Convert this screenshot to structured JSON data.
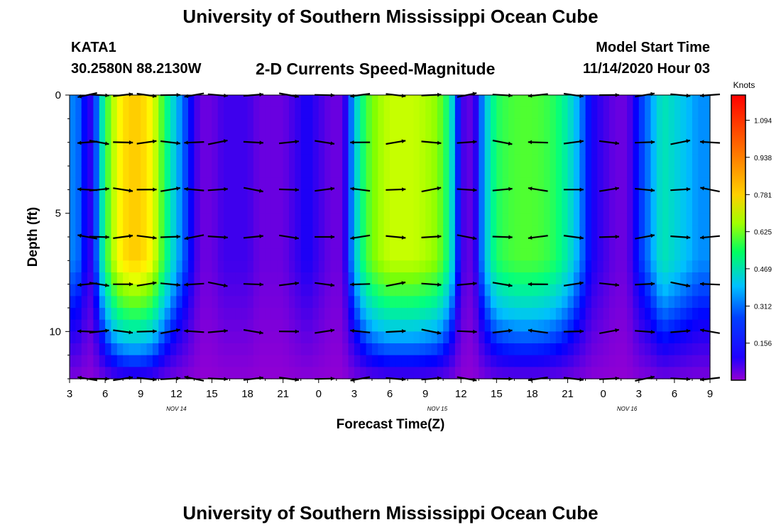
{
  "header": {
    "title": "University of Southern Mississippi Ocean Cube",
    "station": "KATA1",
    "coords": "30.2580N 88.2130W",
    "subtitle": "2-D Currents Speed-Magnitude",
    "model_start_label": "Model Start Time",
    "model_start_value": "11/14/2020 Hour 03",
    "bottom_title": "University of Southern Mississippi Ocean Cube"
  },
  "chart_data": {
    "type": "heatmap",
    "title": "2-D Currents Speed-Magnitude",
    "xlabel": "Forecast Time(Z)",
    "ylabel": "Depth (ft)",
    "x_ticks": [
      "3",
      "6",
      "9",
      "12",
      "15",
      "18",
      "21",
      "0",
      "3",
      "6",
      "9",
      "12",
      "15",
      "18",
      "21",
      "0",
      "3",
      "6",
      "9"
    ],
    "date_labels": [
      {
        "text": "NOV 14",
        "hour_offset": 9
      },
      {
        "text": "NOV 15",
        "hour_offset": 31
      },
      {
        "text": "NOV 16",
        "hour_offset": 47
      }
    ],
    "x_range_hours": [
      0,
      54
    ],
    "y_ticks": [
      0,
      5,
      10
    ],
    "ylim": [
      0,
      12
    ],
    "colorbar": {
      "label": "Knots",
      "range": [
        0,
        1.2
      ],
      "ticks": [
        "1.094",
        "0.938",
        "0.781",
        "0.625",
        "0.469",
        "0.312",
        "0.156"
      ],
      "colors": [
        "#9400d3",
        "#0000ff",
        "#00bfff",
        "#00ff80",
        "#80ff00",
        "#ffff00",
        "#ffa500",
        "#ff0000"
      ]
    },
    "speed_profile_hours": [
      0,
      1,
      1.5,
      2,
      3,
      4,
      5,
      6,
      7,
      8,
      9,
      10,
      11,
      12,
      13,
      14,
      15,
      16,
      17,
      18,
      19,
      20,
      21,
      22,
      23,
      24,
      25,
      26,
      27,
      28,
      29,
      30,
      31,
      32,
      33,
      34,
      35,
      36,
      37,
      38,
      39,
      40,
      41,
      42,
      43,
      44,
      45,
      46,
      47,
      48,
      49,
      50,
      51,
      52,
      53,
      54
    ],
    "speed_profile_knots": [
      0.3,
      0.25,
      0.1,
      0.15,
      0.55,
      0.85,
      0.95,
      0.95,
      0.85,
      0.55,
      0.35,
      0.2,
      0.05,
      0.05,
      0.1,
      0.1,
      0.1,
      0.05,
      0.05,
      0.05,
      0.1,
      0.15,
      0.1,
      0.05,
      0.05,
      0.35,
      0.6,
      0.72,
      0.78,
      0.78,
      0.78,
      0.75,
      0.7,
      0.5,
      0.1,
      0.05,
      0.35,
      0.55,
      0.6,
      0.62,
      0.62,
      0.6,
      0.55,
      0.45,
      0.3,
      0.15,
      0.1,
      0.05,
      0.05,
      0.2,
      0.3,
      0.45,
      0.4,
      0.35,
      0.3,
      0.3
    ],
    "arrow_hours": [
      1.5,
      2.5,
      4.5,
      6.5,
      8.5,
      10.5,
      12.5,
      15.5,
      18.5,
      21.5,
      24.5,
      27.5,
      30.5,
      33.5,
      36.5,
      39.5,
      42.5,
      45.5,
      48.5,
      51.5,
      54
    ],
    "arrow_depths": [
      0,
      2,
      4,
      6,
      8,
      10,
      12
    ]
  }
}
